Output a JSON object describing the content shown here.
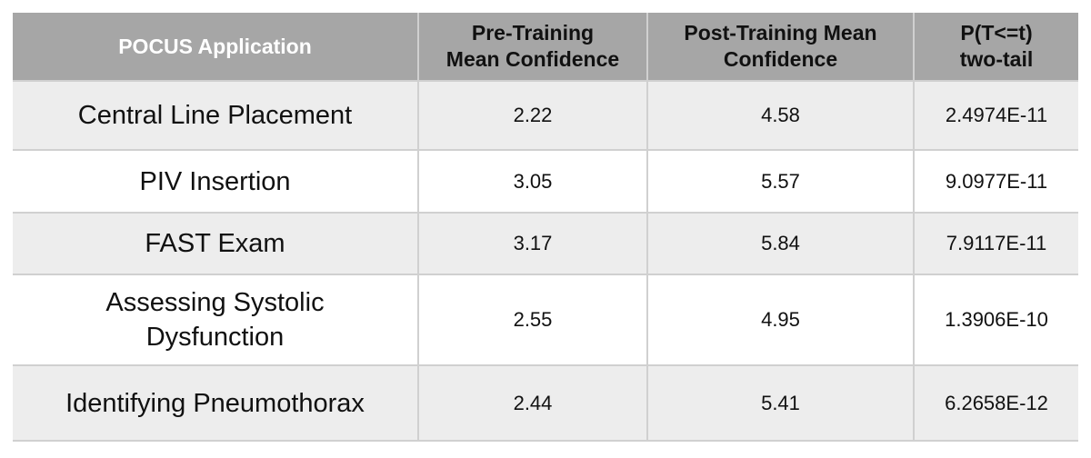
{
  "table": {
    "headers": [
      "POCUS Application",
      [
        "Pre-Training",
        "Mean Confidence"
      ],
      [
        "Post-Training Mean",
        "Confidence"
      ],
      [
        "P(T<=t)",
        "two-tail"
      ]
    ],
    "rows": [
      [
        "Central Line Placement",
        "2.22",
        "4.58",
        "2.4974E-11"
      ],
      [
        "PIV Insertion",
        "3.05",
        "5.57",
        "9.0977E-11"
      ],
      [
        "FAST Exam",
        "3.17",
        "5.84",
        "7.9117E-11"
      ],
      [
        [
          "Assessing Systolic",
          "Dysfunction"
        ],
        "2.55",
        "4.95",
        "1.3906E-10"
      ],
      [
        "Identifying Pneumothorax",
        "2.44",
        "5.41",
        "6.2658E-12"
      ]
    ]
  }
}
